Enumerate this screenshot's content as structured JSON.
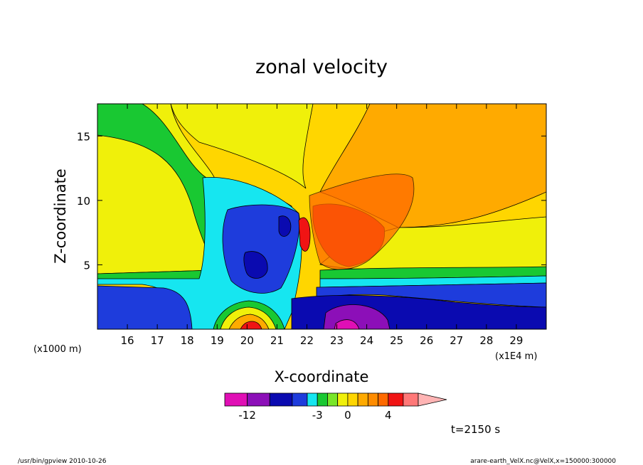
{
  "chart_data": {
    "type": "heatmap",
    "title": "zonal velocity",
    "xlabel": "X-coordinate",
    "ylabel": "Z-coordinate",
    "x_scale_note": "(x1E4 m)",
    "y_scale_note": "(x1000 m)",
    "x_ticks": [
      "16",
      "17",
      "18",
      "19",
      "20",
      "21",
      "22",
      "23",
      "24",
      "25",
      "26",
      "27",
      "28",
      "29"
    ],
    "y_ticks": [
      "5",
      "10",
      "15"
    ],
    "xlim": [
      15,
      30
    ],
    "ylim": [
      0,
      17.5
    ],
    "colorbar": {
      "tick_labels": [
        "-12",
        "-3",
        "0",
        "4"
      ],
      "levels": [
        -15,
        -12,
        -9,
        -6,
        -4,
        -3,
        -2,
        -1,
        0,
        1,
        2,
        3,
        4,
        6,
        8
      ],
      "colors": [
        "#e00fb5",
        "#8c0fb8",
        "#0a0ab0",
        "#1e3cdc",
        "#16e6f0",
        "#19c832",
        "#78e628",
        "#f0f00a",
        "#ffd600",
        "#ffaa00",
        "#ff8c00",
        "#ff6a00",
        "#f01414",
        "#ff7878",
        "#ffb4b4"
      ]
    },
    "annotation": "t=2150 s"
  },
  "footer": {
    "left": "/usr/bin/gpview  2010-10-26",
    "right": "arare-earth_VelX.nc@VelX,x=150000:300000"
  }
}
